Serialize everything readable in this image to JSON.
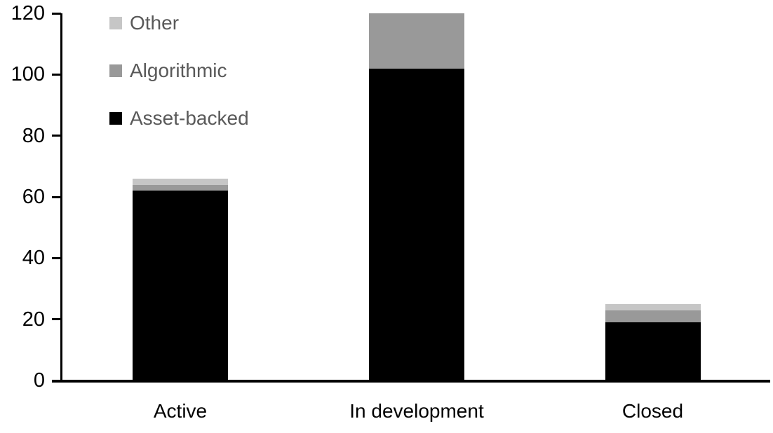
{
  "chart_data": {
    "type": "bar",
    "stacked": true,
    "title": "",
    "xlabel": "",
    "ylabel": "",
    "categories": [
      "Active",
      "In development",
      "Closed"
    ],
    "series": [
      {
        "name": "Asset-backed",
        "color": "#000000",
        "values": [
          62,
          102,
          19
        ]
      },
      {
        "name": "Algorithmic",
        "color": "#999999",
        "values": [
          2,
          18,
          4
        ]
      },
      {
        "name": "Other",
        "color": "#C6C6C6",
        "values": [
          2,
          0,
          2
        ]
      }
    ],
    "stack_totals": [
      66,
      120,
      25
    ],
    "yticks": [
      0,
      20,
      40,
      60,
      80,
      100,
      120
    ],
    "ylim": [
      0,
      120
    ],
    "grid": false,
    "axis_color": "#000000",
    "background_color": "#FFFFFF",
    "legend": {
      "position": "top-left",
      "order": [
        "Other",
        "Algorithmic",
        "Asset-backed"
      ],
      "text_color": "#595959"
    }
  }
}
